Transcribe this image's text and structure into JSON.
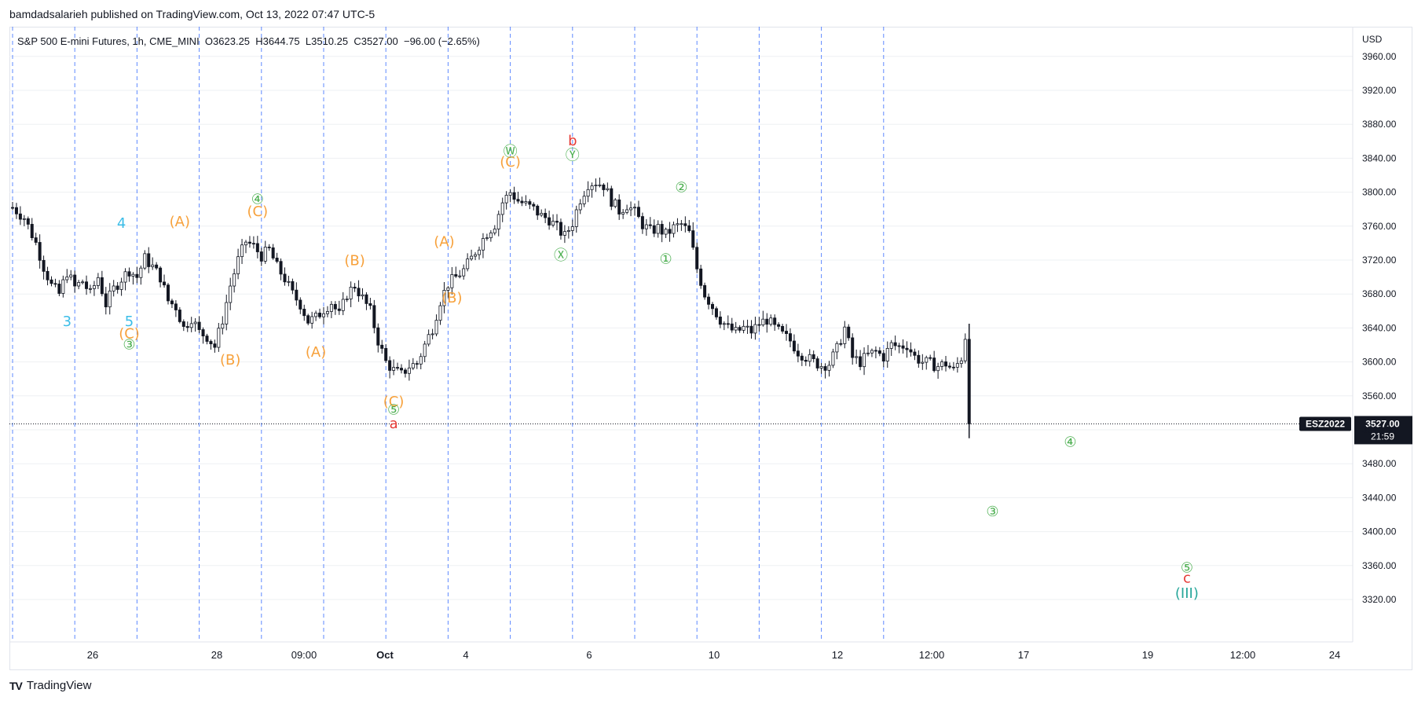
{
  "header": {
    "publisher": "bamdadsalarieh published on TradingView.com, Oct 13, 2022 07:47 UTC-5"
  },
  "legend": {
    "symbol": "S&P 500 E-mini Futures, 1h, CME_MINI",
    "open": "O3623.25",
    "high": "H3644.75",
    "low": "L3510.25",
    "close": "C3527.00",
    "change": "−96.00 (−2.65%)"
  },
  "footer": {
    "brand": "TradingView",
    "logo_icon": "tradingview-logo-icon"
  },
  "colors": {
    "candle": "#131722",
    "vline": "#2962ff",
    "orange": "#f7a13b",
    "green": "#4caf50",
    "cyan": "#3bbde8",
    "red": "#e53935",
    "teal": "#26a69a",
    "grid": "#eef0f3",
    "tag_bg": "#131722"
  },
  "chart_data": {
    "type": "candlestick",
    "currency": "USD",
    "ylim": [
      3270,
      3995
    ],
    "y_ticks": [
      3320,
      3360,
      3400,
      3440,
      3480,
      3520,
      3560,
      3600,
      3640,
      3680,
      3720,
      3760,
      3800,
      3840,
      3880,
      3920,
      3960
    ],
    "y_tick_labels": [
      "3320.00",
      "3360.00",
      "3400.00",
      "3440.00",
      "3480.00",
      "3520.00",
      "3560.00",
      "3600.00",
      "3640.00",
      "3680.00",
      "3720.00",
      "3760.00",
      "3800.00",
      "3840.00",
      "3880.00",
      "3920.00",
      "3960.00"
    ],
    "x_tick_labels": [
      "26",
      "28",
      "09:00",
      "Oct",
      "4",
      "6",
      "10",
      "12",
      "12:00",
      "17",
      "19",
      "12:00",
      "24"
    ],
    "price_line": {
      "symbol": "ESZ2022",
      "value": 3527.0,
      "label": "3527.00",
      "countdown": "21:59"
    },
    "candles_path": [
      [
        0,
        3782
      ],
      [
        3,
        3770
      ],
      [
        6,
        3740
      ],
      [
        8,
        3712
      ],
      [
        10,
        3690
      ],
      [
        12,
        3680
      ],
      [
        14,
        3706
      ],
      [
        16,
        3688
      ],
      [
        18,
        3695
      ],
      [
        20,
        3680
      ],
      [
        22,
        3700
      ],
      [
        24,
        3668
      ],
      [
        26,
        3686
      ],
      [
        28,
        3698
      ],
      [
        30,
        3708
      ],
      [
        32,
        3700
      ],
      [
        34,
        3722
      ],
      [
        36,
        3712
      ],
      [
        38,
        3700
      ],
      [
        40,
        3672
      ],
      [
        42,
        3665
      ],
      [
        44,
        3640
      ],
      [
        46,
        3652
      ],
      [
        48,
        3635
      ],
      [
        50,
        3630
      ],
      [
        52,
        3618
      ],
      [
        54,
        3650
      ],
      [
        56,
        3690
      ],
      [
        58,
        3720
      ],
      [
        60,
        3742
      ],
      [
        62,
        3736
      ],
      [
        64,
        3725
      ],
      [
        66,
        3732
      ],
      [
        68,
        3712
      ],
      [
        70,
        3698
      ],
      [
        72,
        3680
      ],
      [
        74,
        3668
      ],
      [
        76,
        3648
      ],
      [
        78,
        3652
      ],
      [
        80,
        3662
      ],
      [
        82,
        3670
      ],
      [
        84,
        3655
      ],
      [
        86,
        3680
      ],
      [
        88,
        3690
      ],
      [
        90,
        3675
      ],
      [
        92,
        3660
      ],
      [
        94,
        3625
      ],
      [
        96,
        3600
      ],
      [
        98,
        3590
      ],
      [
        100,
        3585
      ],
      [
        102,
        3595
      ],
      [
        104,
        3598
      ],
      [
        106,
        3620
      ],
      [
        108,
        3640
      ],
      [
        110,
        3672
      ],
      [
        112,
        3692
      ],
      [
        114,
        3700
      ],
      [
        116,
        3708
      ],
      [
        118,
        3722
      ],
      [
        120,
        3738
      ],
      [
        122,
        3752
      ],
      [
        124,
        3762
      ],
      [
        126,
        3788
      ],
      [
        128,
        3800
      ],
      [
        130,
        3790
      ],
      [
        132,
        3785
      ],
      [
        134,
        3780
      ],
      [
        136,
        3772
      ],
      [
        138,
        3768
      ],
      [
        140,
        3758
      ],
      [
        142,
        3748
      ],
      [
        144,
        3764
      ],
      [
        146,
        3792
      ],
      [
        148,
        3810
      ],
      [
        150,
        3812
      ],
      [
        152,
        3808
      ],
      [
        154,
        3790
      ],
      [
        156,
        3778
      ],
      [
        158,
        3785
      ],
      [
        160,
        3776
      ],
      [
        162,
        3762
      ],
      [
        164,
        3754
      ],
      [
        166,
        3758
      ],
      [
        168,
        3750
      ],
      [
        170,
        3758
      ],
      [
        172,
        3762
      ],
      [
        174,
        3752
      ],
      [
        176,
        3710
      ],
      [
        178,
        3680
      ],
      [
        180,
        3665
      ],
      [
        182,
        3650
      ],
      [
        184,
        3640
      ],
      [
        186,
        3635
      ],
      [
        188,
        3640
      ],
      [
        190,
        3636
      ],
      [
        192,
        3645
      ],
      [
        194,
        3650
      ],
      [
        196,
        3640
      ],
      [
        198,
        3632
      ],
      [
        200,
        3625
      ],
      [
        202,
        3612
      ],
      [
        204,
        3606
      ],
      [
        206,
        3600
      ],
      [
        208,
        3596
      ],
      [
        210,
        3598
      ],
      [
        212,
        3615
      ],
      [
        214,
        3640
      ],
      [
        216,
        3605
      ],
      [
        218,
        3600
      ],
      [
        220,
        3608
      ],
      [
        222,
        3612
      ],
      [
        224,
        3606
      ],
      [
        226,
        3620
      ],
      [
        228,
        3618
      ],
      [
        230,
        3620
      ],
      [
        232,
        3606
      ],
      [
        234,
        3600
      ],
      [
        236,
        3598
      ],
      [
        238,
        3595
      ],
      [
        240,
        3598
      ],
      [
        242,
        3590
      ],
      [
        244,
        3605
      ],
      [
        245,
        3630
      ],
      [
        246,
        3527
      ]
    ],
    "vertical_lines_bars": [
      0,
      16,
      32,
      48,
      64,
      80,
      96,
      112,
      128,
      144,
      160,
      176,
      192,
      208,
      224
    ],
    "annotations": [
      {
        "t": "4",
        "bar": 28,
        "price": 3758,
        "c": "cyan"
      },
      {
        "t": "3",
        "bar": 14,
        "price": 3642,
        "c": "cyan"
      },
      {
        "t": "5",
        "bar": 30,
        "price": 3642,
        "c": "cyan"
      },
      {
        "t": "(C)",
        "bar": 30,
        "price": 3628,
        "c": "orange"
      },
      {
        "t": "③",
        "bar": 30,
        "price": 3615,
        "c": "green"
      },
      {
        "t": "(A)",
        "bar": 43,
        "price": 3760,
        "c": "orange"
      },
      {
        "t": "(B)",
        "bar": 56,
        "price": 3597,
        "c": "orange"
      },
      {
        "t": "④",
        "bar": 63,
        "price": 3786,
        "c": "green"
      },
      {
        "t": "(C)",
        "bar": 63,
        "price": 3772,
        "c": "orange"
      },
      {
        "t": "(B)",
        "bar": 88,
        "price": 3714,
        "c": "orange"
      },
      {
        "t": "(A)",
        "bar": 78,
        "price": 3606,
        "c": "orange"
      },
      {
        "t": "(C)",
        "bar": 98,
        "price": 3548,
        "c": "orange"
      },
      {
        "t": "⑤",
        "bar": 98,
        "price": 3538,
        "c": "green"
      },
      {
        "t": "a",
        "bar": 98,
        "price": 3522,
        "c": "red"
      },
      {
        "t": "(A)",
        "bar": 111,
        "price": 3736,
        "c": "orange"
      },
      {
        "t": "(B)",
        "bar": 113,
        "price": 3670,
        "c": "orange"
      },
      {
        "t": "(C)",
        "bar": 128,
        "price": 3830,
        "c": "orange"
      },
      {
        "t": "Ⓦ",
        "bar": 128,
        "price": 3842,
        "c": "green"
      },
      {
        "t": "b",
        "bar": 144,
        "price": 3855,
        "c": "red"
      },
      {
        "t": "Ⓨ",
        "bar": 144,
        "price": 3838,
        "c": "green"
      },
      {
        "t": "Ⓧ",
        "bar": 141,
        "price": 3720,
        "c": "green"
      },
      {
        "t": "②",
        "bar": 172,
        "price": 3800,
        "c": "green"
      },
      {
        "t": "①",
        "bar": 168,
        "price": 3716,
        "c": "green"
      },
      {
        "t": "④",
        "bar": 272,
        "price": 3500,
        "c": "green"
      },
      {
        "t": "③",
        "bar": 252,
        "price": 3418,
        "c": "green"
      },
      {
        "t": "⑤",
        "bar": 302,
        "price": 3352,
        "c": "green"
      },
      {
        "t": "c",
        "bar": 302,
        "price": 3340,
        "c": "red"
      },
      {
        "t": "(III)",
        "bar": 302,
        "price": 3322,
        "c": "teal"
      }
    ]
  }
}
